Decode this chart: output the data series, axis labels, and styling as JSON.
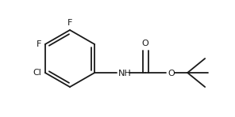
{
  "bg_color": "#ffffff",
  "bond_color": "#1a1a1a",
  "text_color": "#1a1a1a",
  "line_width": 1.3,
  "font_size": 8.0,
  "fig_width": 2.96,
  "fig_height": 1.48,
  "dpi": 100,
  "xlim": [
    0,
    296
  ],
  "ylim": [
    0,
    148
  ]
}
